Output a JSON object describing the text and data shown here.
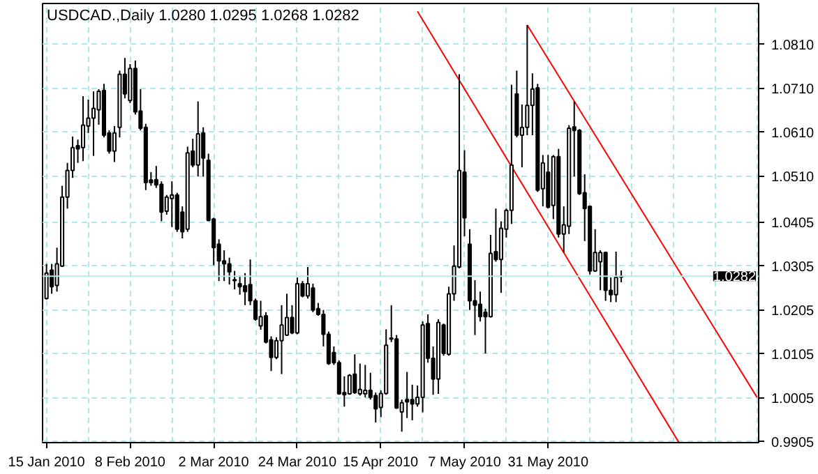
{
  "chart_data": {
    "type": "candlestick",
    "title": "USDCAD.,Daily 1.0280 1.0295 1.0268 1.0282",
    "categories": [
      "15 Jan 2010",
      null,
      null,
      null,
      null,
      null,
      null,
      null,
      null,
      null,
      null,
      null,
      null,
      null,
      null,
      null,
      "8 Feb 2010",
      null,
      null,
      null,
      null,
      null,
      null,
      null,
      null,
      null,
      null,
      null,
      null,
      null,
      null,
      null,
      "2 Mar 2010",
      null,
      null,
      null,
      null,
      null,
      null,
      null,
      null,
      null,
      null,
      null,
      null,
      null,
      null,
      null,
      "24 Mar 2010",
      null,
      null,
      null,
      null,
      null,
      null,
      null,
      null,
      null,
      null,
      null,
      null,
      null,
      null,
      null,
      "15 Apr 2010",
      null,
      null,
      null,
      null,
      null,
      null,
      null,
      null,
      null,
      null,
      null,
      null,
      null,
      null,
      null,
      "7 May 2010",
      null,
      null,
      null,
      null,
      null,
      null,
      null,
      null,
      null,
      null,
      null,
      null,
      null,
      null,
      null,
      "31 May 2010",
      null,
      null,
      null,
      null,
      null,
      null,
      null,
      null,
      null,
      null,
      null,
      null,
      null,
      null,
      null,
      null,
      null,
      null,
      null,
      null,
      null,
      null,
      null,
      null,
      null,
      null,
      null,
      null,
      null,
      null,
      null,
      null,
      null,
      null,
      null,
      null,
      null,
      null,
      null,
      null
    ],
    "ohlc": [
      [
        1.0231,
        1.031,
        1.0229,
        1.0289
      ],
      [
        1.0296,
        1.031,
        1.0242,
        1.0258
      ],
      [
        1.0261,
        1.0347,
        1.0247,
        1.031
      ],
      [
        1.0305,
        1.0488,
        1.0303,
        1.0462
      ],
      [
        1.0462,
        1.054,
        1.0436,
        1.0523
      ],
      [
        1.0523,
        1.06,
        1.0506,
        1.0575
      ],
      [
        1.0579,
        1.0593,
        1.054,
        1.0572
      ],
      [
        1.0575,
        1.0692,
        1.0544,
        1.0626
      ],
      [
        1.0624,
        1.0684,
        1.0608,
        1.0642
      ],
      [
        1.0642,
        1.0703,
        1.0556,
        1.0664
      ],
      [
        1.0661,
        1.0708,
        1.0627,
        1.0703
      ],
      [
        1.0705,
        1.072,
        1.0598,
        1.0603
      ],
      [
        1.0608,
        1.0614,
        1.0561,
        1.0567
      ],
      [
        1.0567,
        1.0624,
        1.0542,
        1.0608
      ],
      [
        1.0621,
        1.075,
        1.0598,
        1.0742
      ],
      [
        1.0742,
        1.0779,
        1.0687,
        1.0697
      ],
      [
        1.0682,
        1.0765,
        1.0676,
        1.0755
      ],
      [
        1.0755,
        1.0773,
        1.065,
        1.0656
      ],
      [
        1.0658,
        1.0708,
        1.0614,
        1.0619
      ],
      [
        1.0621,
        1.0629,
        1.0478,
        1.0495
      ],
      [
        1.0501,
        1.0519,
        1.0488,
        1.0495
      ],
      [
        1.0502,
        1.0533,
        1.0483,
        1.049
      ],
      [
        1.0491,
        1.0498,
        1.0407,
        1.0428
      ],
      [
        1.043,
        1.0467,
        1.0422,
        1.0462
      ],
      [
        1.0459,
        1.0498,
        1.0394,
        1.0467
      ],
      [
        1.0467,
        1.0472,
        1.0383,
        1.0389
      ],
      [
        1.0428,
        1.0441,
        1.0368,
        1.0383
      ],
      [
        1.0389,
        1.0577,
        1.0383,
        1.0563
      ],
      [
        1.0567,
        1.0595,
        1.053,
        1.0535
      ],
      [
        1.0535,
        1.068,
        1.0509,
        1.0606
      ],
      [
        1.0608,
        1.0621,
        1.0509,
        1.0551
      ],
      [
        1.0546,
        1.0561,
        1.0407,
        1.0409
      ],
      [
        1.0412,
        1.0415,
        1.0307,
        1.0347
      ],
      [
        1.0355,
        1.0366,
        1.0271,
        1.0317
      ],
      [
        1.0317,
        1.0341,
        1.0271,
        1.031
      ],
      [
        1.031,
        1.0324,
        1.0263,
        1.0292
      ],
      [
        1.0274,
        1.0294,
        1.0252,
        1.0272
      ],
      [
        1.0265,
        1.0284,
        1.024,
        1.0258
      ],
      [
        1.026,
        1.0289,
        1.0216,
        1.0247
      ],
      [
        1.0263,
        1.032,
        1.0216,
        1.0226
      ],
      [
        1.0226,
        1.0231,
        1.0181,
        1.0184
      ],
      [
        1.0169,
        1.0226,
        1.016,
        1.019
      ],
      [
        1.0192,
        1.02,
        1.0129,
        1.0132
      ],
      [
        1.0137,
        1.0145,
        1.0066,
        1.0097
      ],
      [
        1.0097,
        1.0143,
        1.0093,
        1.0135
      ],
      [
        1.0135,
        1.0216,
        1.0059,
        1.0171
      ],
      [
        1.0148,
        1.0242,
        1.0146,
        1.0188
      ],
      [
        1.0188,
        1.0216,
        1.015,
        1.0153
      ],
      [
        1.0153,
        1.0279,
        1.015,
        1.0265
      ],
      [
        1.0265,
        1.0271,
        1.0234,
        1.0237
      ],
      [
        1.0237,
        1.0303,
        1.0231,
        1.0265
      ],
      [
        1.0255,
        1.0265,
        1.02,
        1.0205
      ],
      [
        1.0208,
        1.0221,
        1.0192,
        1.0195
      ],
      [
        1.0195,
        1.0205,
        1.0122,
        1.015
      ],
      [
        1.015,
        1.0156,
        1.008,
        1.0083
      ],
      [
        1.0108,
        1.0122,
        1.008,
        1.0085
      ],
      [
        1.0085,
        1.009,
        1.0012,
        1.0014
      ],
      [
        1.0017,
        1.0054,
        0.9985,
        1.0012
      ],
      [
        1.0014,
        1.0059,
        1.0012,
        1.0056
      ],
      [
        1.0059,
        1.0104,
        1.0014,
        1.0017
      ],
      [
        1.0014,
        1.0083,
        1.001,
        1.0024
      ],
      [
        1.0014,
        1.008,
        1.0006,
        1.0022
      ],
      [
        1.0022,
        1.0062,
        1.0001,
        1.0006
      ],
      [
        1.001,
        1.0017,
        0.9949,
        0.998
      ],
      [
        0.9983,
        1.0022,
        0.9961,
        1.0015
      ],
      [
        1.0015,
        1.0161,
        1.0012,
        1.0125
      ],
      [
        1.0141,
        1.0216,
        1.0132,
        1.0139
      ],
      [
        1.0139,
        1.0148,
        0.998,
        0.9982
      ],
      [
        0.9973,
        1.0001,
        0.9928,
        0.9994
      ],
      [
        1.0001,
        1.0064,
        0.9959,
        0.9996
      ],
      [
        1.0001,
        1.0035,
        0.9954,
        0.9991
      ],
      [
        0.9991,
        1.0033,
        0.9985,
        1.0006
      ],
      [
        1.0006,
        1.0179,
        0.9972,
        1.0171
      ],
      [
        1.0174,
        1.0195,
        1.0085,
        1.0095
      ],
      [
        1.0095,
        1.0122,
        1.0012,
        1.0048
      ],
      [
        1.0048,
        1.0184,
        1.0014,
        1.0177
      ],
      [
        1.0171,
        1.0174,
        1.0101,
        1.0106
      ],
      [
        1.0104,
        1.0258,
        1.0101,
        1.0242
      ],
      [
        1.0242,
        1.0352,
        1.0226,
        1.0305
      ],
      [
        1.0303,
        1.0742,
        1.03,
        1.0523
      ],
      [
        1.0519,
        1.0569,
        1.0373,
        1.0415
      ],
      [
        1.0355,
        1.0389,
        1.0205,
        1.0226
      ],
      [
        1.0226,
        1.0273,
        1.0148,
        1.0216
      ],
      [
        1.0218,
        1.0247,
        1.0179,
        1.019
      ],
      [
        1.02,
        1.0208,
        1.0106,
        1.019
      ],
      [
        1.019,
        1.0376,
        1.0188,
        1.0334
      ],
      [
        1.0338,
        1.0436,
        1.0315,
        1.032
      ],
      [
        1.032,
        1.0407,
        1.0244,
        1.0391
      ],
      [
        1.0389,
        1.0436,
        1.037,
        1.0432
      ],
      [
        1.0432,
        1.0718,
        1.0401,
        1.0535
      ],
      [
        1.0697,
        1.075,
        1.0598,
        1.0603
      ],
      [
        1.0603,
        1.0673,
        1.053,
        1.0621
      ],
      [
        1.0621,
        1.0854,
        1.0603,
        1.0671
      ],
      [
        1.0671,
        1.0744,
        1.0603,
        1.0708
      ],
      [
        1.0711,
        1.072,
        1.0474,
        1.0478
      ],
      [
        1.0481,
        1.0558,
        1.0441,
        1.054
      ],
      [
        1.0519,
        1.0558,
        1.0436,
        1.0439
      ],
      [
        1.0443,
        1.0558,
        1.0412,
        1.0554
      ],
      [
        1.0554,
        1.0572,
        1.037,
        1.0378
      ],
      [
        1.0378,
        1.0441,
        1.0336,
        1.0399
      ],
      [
        1.0396,
        1.0626,
        1.0378,
        1.0619
      ],
      [
        1.0622,
        1.068,
        1.0509,
        1.0614
      ],
      [
        1.0614,
        1.0617,
        1.0467,
        1.047
      ],
      [
        1.0472,
        1.0514,
        1.0362,
        1.0436
      ],
      [
        1.0441,
        1.0443,
        1.0286,
        1.0294
      ],
      [
        1.0294,
        1.0389,
        1.0292,
        1.0336
      ],
      [
        1.0315,
        1.0341,
        1.025,
        1.0336
      ],
      [
        1.0336,
        1.0338,
        1.0226,
        1.025
      ],
      [
        1.025,
        1.0279,
        1.0223,
        1.024
      ],
      [
        1.024,
        1.0338,
        1.0223,
        1.0279
      ],
      [
        1.028,
        1.0295,
        1.0268,
        1.0282
      ],
      null,
      null,
      null,
      null,
      null,
      null,
      null,
      null,
      null,
      null,
      null,
      null,
      null,
      null,
      null,
      null,
      null,
      null,
      null,
      null,
      null,
      null,
      null,
      null,
      null,
      null
    ],
    "series": [
      {
        "type": "line",
        "color": "#ff0000",
        "values": [
          null,
          null,
          null,
          null,
          null,
          null,
          null,
          null,
          null,
          null,
          null,
          null,
          null,
          null,
          null,
          null,
          null,
          null,
          null,
          null,
          null,
          null,
          null,
          null,
          null,
          null,
          null,
          null,
          null,
          null,
          null,
          null,
          null,
          null,
          null,
          null,
          null,
          null,
          null,
          null,
          null,
          null,
          null,
          null,
          null,
          null,
          null,
          null,
          null,
          null,
          null,
          null,
          null,
          null,
          null,
          null,
          null,
          null,
          null,
          null,
          null,
          null,
          null,
          null,
          null,
          null,
          null,
          null,
          null,
          null,
          null,
          1.0885,
          null,
          null,
          null,
          null,
          null,
          null,
          null,
          null,
          null,
          null,
          null,
          null,
          null,
          null,
          null,
          null,
          null,
          null,
          null,
          null,
          null,
          null,
          null,
          null,
          null,
          null,
          null,
          null,
          null,
          null,
          null,
          null,
          null,
          null,
          null,
          null,
          null,
          null,
          null,
          null,
          null,
          null,
          null,
          null,
          null,
          null,
          null,
          null,
          null,
          0.9904,
          null,
          null,
          null,
          null,
          null,
          null,
          null,
          null,
          null,
          null,
          null,
          null,
          null,
          null,
          null
        ]
      },
      {
        "type": "line",
        "color": "#ff0000",
        "values": [
          null,
          null,
          null,
          null,
          null,
          null,
          null,
          null,
          null,
          null,
          null,
          null,
          null,
          null,
          null,
          null,
          null,
          null,
          null,
          null,
          null,
          null,
          null,
          null,
          null,
          null,
          null,
          null,
          null,
          null,
          null,
          null,
          null,
          null,
          null,
          null,
          null,
          null,
          null,
          null,
          null,
          null,
          null,
          null,
          null,
          null,
          null,
          null,
          null,
          null,
          null,
          null,
          null,
          null,
          null,
          null,
          null,
          null,
          null,
          null,
          null,
          null,
          null,
          null,
          null,
          null,
          null,
          null,
          null,
          null,
          null,
          null,
          null,
          null,
          null,
          null,
          null,
          null,
          null,
          null,
          null,
          null,
          null,
          null,
          null,
          null,
          null,
          null,
          null,
          null,
          null,
          null,
          1.0854,
          null,
          null,
          null,
          null,
          null,
          null,
          null,
          null,
          null,
          null,
          null,
          null,
          null,
          null,
          null,
          null,
          null,
          null,
          null,
          null,
          null,
          null,
          null,
          null,
          null,
          null,
          null,
          null,
          null,
          null,
          null,
          null,
          null,
          null,
          null,
          null,
          null,
          null,
          null,
          null,
          null,
          null,
          null,
          1.0006
        ]
      }
    ],
    "ylim": [
      0.9903,
      1.0903
    ],
    "yticks": [
      {
        "value": 0.9905,
        "label": "0.9905"
      },
      {
        "value": 1.0005,
        "label": "1.0005"
      },
      {
        "value": 1.0105,
        "label": "1.0105"
      },
      {
        "value": 1.0205,
        "label": "1.0205"
      },
      {
        "value": 1.0305,
        "label": "1.0305"
      },
      {
        "value": 1.0405,
        "label": "1.0405"
      },
      {
        "value": 1.051,
        "label": "1.0510"
      },
      {
        "value": 1.061,
        "label": "1.0610"
      },
      {
        "value": 1.071,
        "label": "1.0710"
      },
      {
        "value": 1.081,
        "label": "1.0810"
      }
    ],
    "ref_lines": [
      {
        "axis": "y",
        "value": 1.0282,
        "label": "1.0282",
        "color": "#b4ecec"
      }
    ],
    "grid": true
  }
}
